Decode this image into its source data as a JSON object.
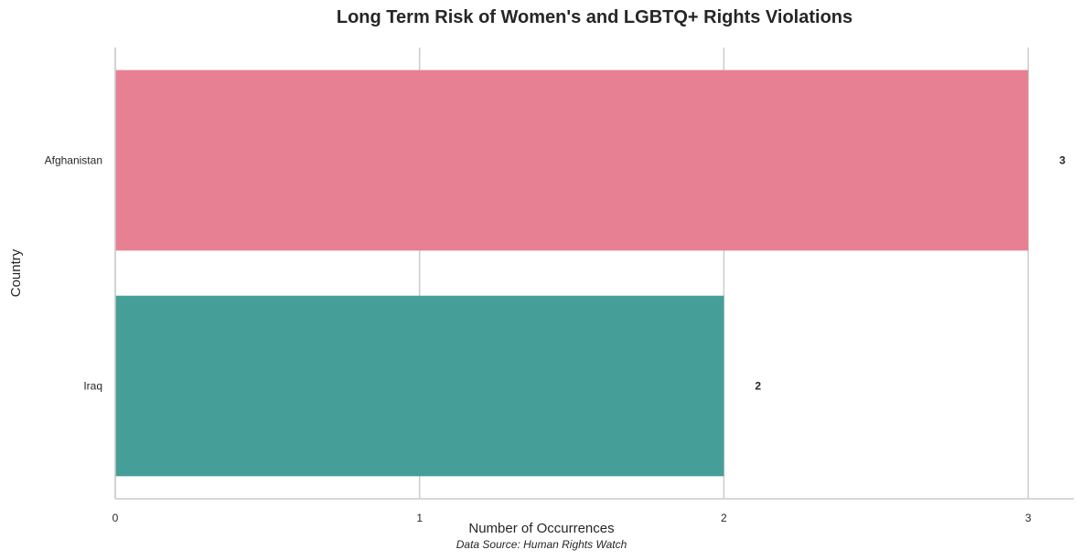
{
  "chart_data": {
    "type": "bar",
    "orientation": "horizontal",
    "title": "Long Term Risk of Women's and LGBTQ+ Rights Violations",
    "xlabel": "Number of Occurrences",
    "ylabel": "Country",
    "categories": [
      "Afghanistan",
      "Iraq"
    ],
    "values": [
      3,
      2
    ],
    "colors": [
      "#e88093",
      "#469e98"
    ],
    "xlim": [
      0,
      3.15
    ],
    "xticks": [
      0,
      1,
      2,
      3
    ],
    "grid": "vertical",
    "source": "Data Source: Human Rights Watch"
  }
}
